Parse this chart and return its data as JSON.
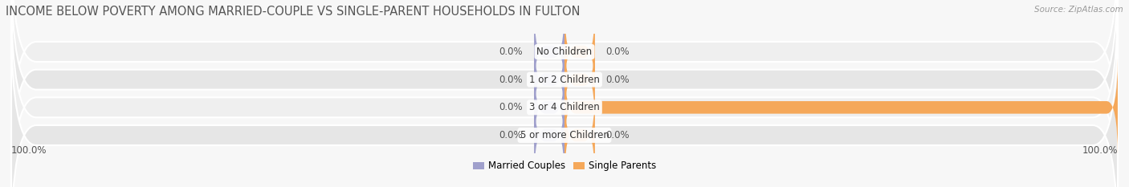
{
  "title": "INCOME BELOW POVERTY AMONG MARRIED-COUPLE VS SINGLE-PARENT HOUSEHOLDS IN FULTON",
  "source": "Source: ZipAtlas.com",
  "categories": [
    "No Children",
    "1 or 2 Children",
    "3 or 4 Children",
    "5 or more Children"
  ],
  "married_values": [
    0.0,
    0.0,
    0.0,
    0.0
  ],
  "single_values": [
    0.0,
    0.0,
    100.0,
    0.0
  ],
  "married_color": "#a0a0cc",
  "single_color": "#f5a85a",
  "married_label": "Married Couples",
  "single_label": "Single Parents",
  "row_colors": [
    "#efefef",
    "#e6e6e6",
    "#efefef",
    "#e6e6e6"
  ],
  "bg_color": "#f7f7f7",
  "axis_label_left": "100.0%",
  "axis_label_right": "100.0%",
  "title_color": "#555555",
  "source_color": "#999999",
  "value_color": "#555555",
  "title_fontsize": 10.5,
  "label_fontsize": 8.5,
  "value_fontsize": 8.5,
  "legend_fontsize": 8.5,
  "max_val": 100.0,
  "stub_size": 5.5
}
